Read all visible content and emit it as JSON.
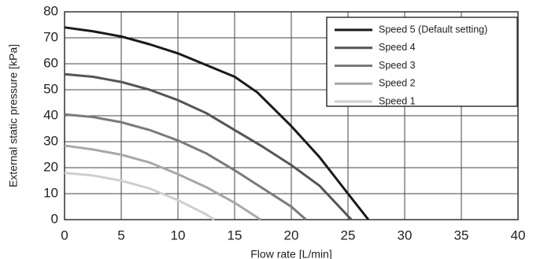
{
  "chart_data": {
    "type": "line",
    "xlabel": "Flow rate [L/min]",
    "ylabel": "External static pressure [kPa]",
    "xlim": [
      0,
      40
    ],
    "xticks": [
      0,
      5,
      10,
      15,
      20,
      25,
      30,
      35,
      40
    ],
    "ylim": [
      0,
      80
    ],
    "yticks": [
      0,
      10,
      20,
      30,
      40,
      50,
      60,
      70,
      80
    ],
    "grid": true,
    "legend": "upper right",
    "series": [
      {
        "name": "Speed 5 (Default setting)",
        "color": "#1a1a1a",
        "x": [
          0,
          2.5,
          5,
          7.5,
          10,
          12.5,
          15,
          17,
          20,
          22.5,
          25,
          26.8
        ],
        "values": [
          74,
          72.5,
          70.5,
          67.5,
          64,
          59.5,
          55,
          49,
          36,
          24,
          10,
          0
        ]
      },
      {
        "name": "Speed 4",
        "color": "#555555",
        "x": [
          0,
          2.5,
          5,
          7.5,
          10,
          12.5,
          15,
          17.5,
          20,
          22.5,
          25.3
        ],
        "values": [
          56,
          55,
          53,
          50,
          46,
          41,
          34.5,
          28,
          21,
          13,
          0
        ]
      },
      {
        "name": "Speed 3",
        "color": "#7a7a7a",
        "x": [
          0,
          2.5,
          5,
          7.5,
          10,
          12.5,
          15,
          17.5,
          20,
          21.3
        ],
        "values": [
          40.5,
          39.5,
          37.5,
          34.5,
          30.5,
          25.5,
          19,
          12,
          5,
          0
        ]
      },
      {
        "name": "Speed 2",
        "color": "#a8a8a8",
        "x": [
          0,
          2.5,
          5,
          7.5,
          10,
          12.5,
          15,
          17.3
        ],
        "values": [
          28.5,
          27,
          25,
          22,
          17.5,
          12.5,
          6.5,
          0
        ]
      },
      {
        "name": "Speed 1",
        "color": "#cfcfcf",
        "x": [
          0,
          2.5,
          5,
          7.5,
          10,
          12.5,
          13.2
        ],
        "values": [
          18,
          17,
          15,
          12,
          7.5,
          2,
          0
        ]
      }
    ]
  }
}
